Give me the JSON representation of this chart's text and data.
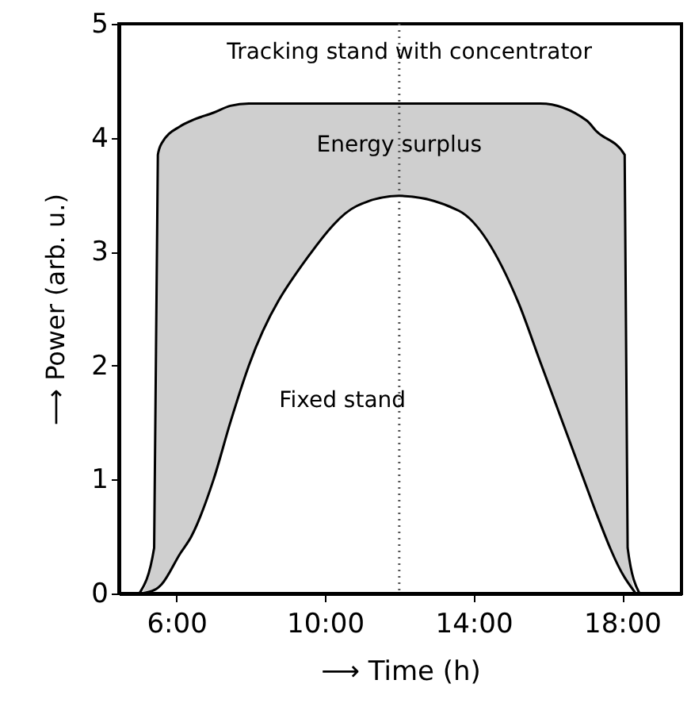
{
  "chart_data": {
    "type": "line",
    "xlabel": "⟶  Time (h)",
    "ylabel": "⟶  Power (arb. u.)",
    "x": [
      5.0,
      5.4,
      5.5,
      5.6,
      6.1,
      6.4,
      7.0,
      7.45,
      7.95,
      9.6,
      10.85,
      12.0,
      13.6,
      15.2,
      15.8,
      17.05,
      17.3,
      18.07,
      18.15,
      18.47
    ],
    "series": [
      {
        "color": "#000000",
        "values": [
          0,
          0.4,
          3.85,
          3.95,
          4.1,
          4.15,
          4.22,
          4.28,
          4.3,
          4.3,
          4.3,
          4.3,
          4.3,
          4.3,
          4.3,
          4.15,
          4.06,
          3.85,
          0.4,
          0
        ]
      },
      {
        "color": "#000000",
        "x": [
          5.07,
          5.4,
          5.5,
          5.6,
          6.1,
          6.4,
          7.0,
          7.45,
          7.95,
          9.6,
          10.85,
          12.0,
          13.6,
          15.2,
          15.8,
          17.05,
          17.3,
          18.07,
          18.15,
          18.37
        ],
        "values": [
          0,
          0.03,
          0.05,
          0.08,
          0.35,
          0.5,
          1.0,
          1.5,
          2.0,
          2.98,
          3.4,
          3.49,
          3.36,
          2.56,
          2.03,
          0.93,
          0.71,
          0.14,
          0.1,
          0
        ],
        "lower": [
          0,
          0.03,
          0.05,
          0.08,
          0.35,
          0.5,
          1.0,
          1.5,
          2.0,
          2.98,
          3.4,
          3.49,
          3.36,
          2.56,
          2.03,
          0.93,
          0.71,
          0.14,
          0.1,
          0
        ],
        "upper": [
          0,
          0.4,
          3.85,
          3.95,
          4.1,
          4.15,
          4.22,
          4.28,
          4.3,
          4.3,
          4.3,
          4.3,
          4.3,
          4.3,
          4.3,
          4.15,
          4.06,
          3.85,
          0.4,
          0
        ]
      }
    ],
    "annotations": [
      {
        "text": "Tracking stand with concentrator",
        "x": 7.1,
        "y": 4.25
      },
      {
        "text": "Energy surplus",
        "x": 12.0,
        "y": 3.85
      },
      {
        "text": "Fixed stand",
        "x": 8.0,
        "y": 2.0
      }
    ],
    "ref_lines": [
      {
        "axis": "x",
        "value": 12.0,
        "color": "#555555",
        "line_style": "dotted"
      }
    ],
    "xlim": [
      4.45,
      19.6
    ],
    "xticks": [
      {
        "value": 6,
        "label": "6:00"
      },
      {
        "value": 10,
        "label": "10:00"
      },
      {
        "value": 14,
        "label": "14:00"
      },
      {
        "value": 18,
        "label": "18:00"
      }
    ],
    "ylim": [
      0,
      5
    ],
    "yticks": [
      0,
      1,
      2,
      3,
      4,
      5
    ],
    "grid": false,
    "line_style": "solid",
    "marker": "none"
  }
}
